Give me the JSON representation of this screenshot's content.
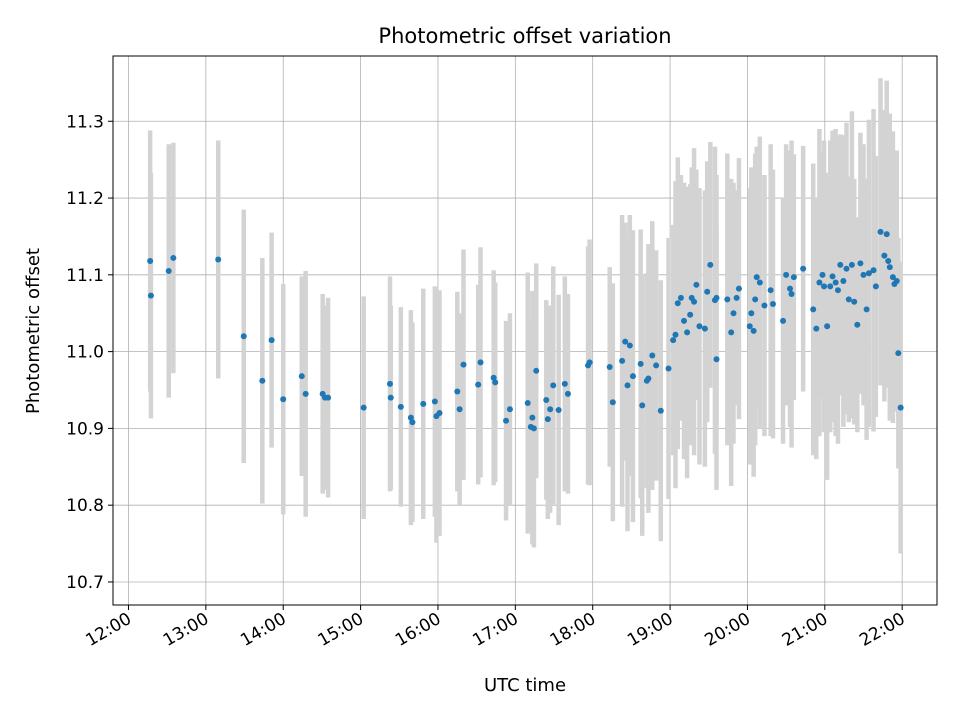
{
  "chart_data": {
    "type": "scatter",
    "title": "Photometric offset variation",
    "xlabel": "UTC time",
    "ylabel": "Photometric offset",
    "x_unit": "hours UTC",
    "xlim": [
      11.8,
      22.45
    ],
    "ylim": [
      10.67,
      11.385
    ],
    "x_ticks": [
      12,
      13,
      14,
      15,
      16,
      17,
      18,
      19,
      20,
      21,
      22
    ],
    "x_tick_labels": [
      "12:00",
      "13:00",
      "14:00",
      "15:00",
      "16:00",
      "17:00",
      "18:00",
      "19:00",
      "20:00",
      "21:00",
      "22:00"
    ],
    "y_ticks": [
      10.7,
      10.8,
      10.9,
      11.0,
      11.1,
      11.2,
      11.3
    ],
    "y_tick_labels": [
      "10.7",
      "10.8",
      "10.9",
      "11.0",
      "11.1",
      "11.2",
      "11.3"
    ],
    "grid": true,
    "point_color": "#1f77b4",
    "errorbar_color": "#d3d3d3",
    "points": [
      [
        12.28,
        11.118,
        0.17
      ],
      [
        12.29,
        11.073,
        0.16
      ],
      [
        12.52,
        11.105,
        0.165
      ],
      [
        12.58,
        11.122,
        0.15
      ],
      [
        13.16,
        11.12,
        0.155
      ],
      [
        13.49,
        11.02,
        0.165
      ],
      [
        13.73,
        10.962,
        0.16
      ],
      [
        13.85,
        11.015,
        0.14
      ],
      [
        14.0,
        10.938,
        0.15
      ],
      [
        14.24,
        10.968,
        0.13
      ],
      [
        14.29,
        10.945,
        0.16
      ],
      [
        14.51,
        10.945,
        0.13
      ],
      [
        14.54,
        10.94,
        0.12
      ],
      [
        14.58,
        10.94,
        0.13
      ],
      [
        15.04,
        10.927,
        0.145
      ],
      [
        15.38,
        10.958,
        0.14
      ],
      [
        15.39,
        10.94,
        0.12
      ],
      [
        15.52,
        10.928,
        0.13
      ],
      [
        15.65,
        10.914,
        0.14
      ],
      [
        15.67,
        10.908,
        0.13
      ],
      [
        15.81,
        10.932,
        0.15
      ],
      [
        15.96,
        10.935,
        0.15
      ],
      [
        15.98,
        10.916,
        0.165
      ],
      [
        16.02,
        10.92,
        0.16
      ],
      [
        16.25,
        10.948,
        0.13
      ],
      [
        16.28,
        10.925,
        0.125
      ],
      [
        16.33,
        10.983,
        0.15
      ],
      [
        16.52,
        10.957,
        0.13
      ],
      [
        16.55,
        10.986,
        0.15
      ],
      [
        16.72,
        10.966,
        0.14
      ],
      [
        16.74,
        10.96,
        0.13
      ],
      [
        16.88,
        10.91,
        0.13
      ],
      [
        16.93,
        10.925,
        0.125
      ],
      [
        17.16,
        10.933,
        0.17
      ],
      [
        17.2,
        10.902,
        0.135
      ],
      [
        17.22,
        10.914,
        0.165
      ],
      [
        17.24,
        10.9,
        0.155
      ],
      [
        17.27,
        10.975,
        0.14
      ],
      [
        17.4,
        10.937,
        0.13
      ],
      [
        17.42,
        10.912,
        0.13
      ],
      [
        17.45,
        10.925,
        0.135
      ],
      [
        17.49,
        10.956,
        0.155
      ],
      [
        17.56,
        10.924,
        0.15
      ],
      [
        17.64,
        10.958,
        0.14
      ],
      [
        17.68,
        10.945,
        0.13
      ],
      [
        17.94,
        10.982,
        0.155
      ],
      [
        17.96,
        10.986,
        0.16
      ],
      [
        18.22,
        10.98,
        0.13
      ],
      [
        18.26,
        10.934,
        0.155
      ],
      [
        18.38,
        10.988,
        0.19
      ],
      [
        18.42,
        11.013,
        0.155
      ],
      [
        18.45,
        10.956,
        0.19
      ],
      [
        18.48,
        11.008,
        0.17
      ],
      [
        18.52,
        10.968,
        0.19
      ],
      [
        18.62,
        10.984,
        0.175
      ],
      [
        18.64,
        10.93,
        0.17
      ],
      [
        18.7,
        10.962,
        0.14
      ],
      [
        18.72,
        10.965,
        0.175
      ],
      [
        18.77,
        10.995,
        0.175
      ],
      [
        18.82,
        10.982,
        0.15
      ],
      [
        18.88,
        10.923,
        0.17
      ],
      [
        18.98,
        10.978,
        0.17
      ],
      [
        19.04,
        11.015,
        0.15
      ],
      [
        19.07,
        11.022,
        0.2
      ],
      [
        19.1,
        11.063,
        0.19
      ],
      [
        19.14,
        11.07,
        0.16
      ],
      [
        19.18,
        11.04,
        0.18
      ],
      [
        19.22,
        11.025,
        0.19
      ],
      [
        19.26,
        11.048,
        0.17
      ],
      [
        19.28,
        11.07,
        0.17
      ],
      [
        19.31,
        11.065,
        0.2
      ],
      [
        19.34,
        11.087,
        0.15
      ],
      [
        19.38,
        11.033,
        0.18
      ],
      [
        19.45,
        11.03,
        0.18
      ],
      [
        19.48,
        11.078,
        0.17
      ],
      [
        19.52,
        11.113,
        0.16
      ],
      [
        19.58,
        11.067,
        0.2
      ],
      [
        19.6,
        11.07,
        0.16
      ],
      [
        19.6,
        10.99,
        0.17
      ],
      [
        19.74,
        11.068,
        0.19
      ],
      [
        19.79,
        11.025,
        0.2
      ],
      [
        19.82,
        11.05,
        0.17
      ],
      [
        19.86,
        11.07,
        0.14
      ],
      [
        19.89,
        11.082,
        0.17
      ],
      [
        20.03,
        11.033,
        0.18
      ],
      [
        20.05,
        11.05,
        0.19
      ],
      [
        20.08,
        11.027,
        0.19
      ],
      [
        20.1,
        11.068,
        0.19
      ],
      [
        20.12,
        11.097,
        0.17
      ],
      [
        20.16,
        11.09,
        0.19
      ],
      [
        20.22,
        11.06,
        0.17
      ],
      [
        20.3,
        11.08,
        0.19
      ],
      [
        20.33,
        11.062,
        0.175
      ],
      [
        20.46,
        11.04,
        0.16
      ],
      [
        20.5,
        11.1,
        0.17
      ],
      [
        20.55,
        11.082,
        0.18
      ],
      [
        20.57,
        11.075,
        0.2
      ],
      [
        20.6,
        11.097,
        0.16
      ],
      [
        20.72,
        11.108,
        0.16
      ],
      [
        20.85,
        11.055,
        0.19
      ],
      [
        20.89,
        11.03,
        0.17
      ],
      [
        20.93,
        11.09,
        0.2
      ],
      [
        20.97,
        11.1,
        0.16
      ],
      [
        20.99,
        11.085,
        0.19
      ],
      [
        21.03,
        11.033,
        0.2
      ],
      [
        21.07,
        11.085,
        0.19
      ],
      [
        21.1,
        11.098,
        0.19
      ],
      [
        21.14,
        11.09,
        0.2
      ],
      [
        21.17,
        11.08,
        0.2
      ],
      [
        21.2,
        11.113,
        0.17
      ],
      [
        21.24,
        11.092,
        0.19
      ],
      [
        21.28,
        11.108,
        0.19
      ],
      [
        21.31,
        11.068,
        0.16
      ],
      [
        21.35,
        11.113,
        0.2
      ],
      [
        21.38,
        11.065,
        0.16
      ],
      [
        21.42,
        11.035,
        0.14
      ],
      [
        21.46,
        11.115,
        0.17
      ],
      [
        21.5,
        11.1,
        0.17
      ],
      [
        21.54,
        11.055,
        0.17
      ],
      [
        21.57,
        11.102,
        0.2
      ],
      [
        21.63,
        11.106,
        0.21
      ],
      [
        21.66,
        11.085,
        0.17
      ],
      [
        21.72,
        11.156,
        0.2
      ],
      [
        21.77,
        11.125,
        0.19
      ],
      [
        21.8,
        11.153,
        0.2
      ],
      [
        21.84,
        11.11,
        0.2
      ],
      [
        21.88,
        11.097,
        0.19
      ],
      [
        21.9,
        11.088,
        0.16
      ],
      [
        21.93,
        11.092,
        0.17
      ],
      [
        21.95,
        10.998,
        0.15
      ],
      [
        21.98,
        10.927,
        0.19
      ],
      [
        21.82,
        11.118,
        0.15
      ]
    ]
  }
}
